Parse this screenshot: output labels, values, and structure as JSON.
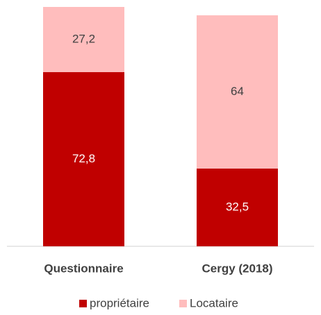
{
  "chart_data": {
    "type": "stacked_bar",
    "categories": [
      "Questionnaire",
      "Cergy (2018)"
    ],
    "series": [
      {
        "name": "propriétaire",
        "color": "#c00000",
        "label_color": "#ffffff",
        "values": [
          72.8,
          32.5
        ],
        "value_labels": [
          "72,8",
          "32,5"
        ]
      },
      {
        "name": "Locataire",
        "color": "#ffbdbd",
        "label_color": "#404040",
        "values": [
          27.2,
          64
        ],
        "value_labels": [
          "27,2",
          "64"
        ]
      }
    ],
    "ylim": [
      0,
      100
    ],
    "legend": "bottom"
  }
}
